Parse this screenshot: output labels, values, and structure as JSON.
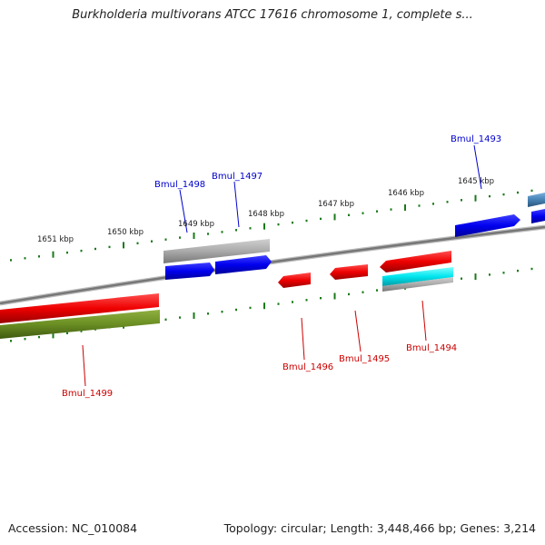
{
  "title": "Burkholderia multivorans ATCC 17616 chromosome 1, complete s...",
  "footer": {
    "accession": "Accession: NC_010084",
    "topology": "Topology: circular; Length: 3,448,466 bp; Genes: 3,214"
  },
  "kbp_ticks": [
    {
      "label": "1651 kbp"
    },
    {
      "label": "1650 kbp"
    },
    {
      "label": "1649 kbp"
    },
    {
      "label": "1648 kbp"
    },
    {
      "label": "1647 kbp"
    },
    {
      "label": "1646 kbp"
    },
    {
      "label": "1645 kbp"
    }
  ],
  "genes": [
    {
      "label": "Bmul_1493",
      "color": "#0000cc"
    },
    {
      "label": "Bmul_1494",
      "color": "#cc0000"
    },
    {
      "label": "Bmul_1495",
      "color": "#cc0000"
    },
    {
      "label": "Bmul_1496",
      "color": "#cc0000"
    },
    {
      "label": "Bmul_1497",
      "color": "#0000cc"
    },
    {
      "label": "Bmul_1498",
      "color": "#0000cc"
    },
    {
      "label": "Bmul_1499",
      "color": "#cc0000"
    }
  ],
  "colors": {
    "forward_gene": "#0000ee",
    "reverse_gene": "#ee0000",
    "gray_feature": "#aaaaaa",
    "olive_feature": "#6b8e23",
    "cyan_feature": "#00e5ee",
    "steel_feature": "#4682b4",
    "backbone": "#888888",
    "tick": "#1a7a1a"
  }
}
